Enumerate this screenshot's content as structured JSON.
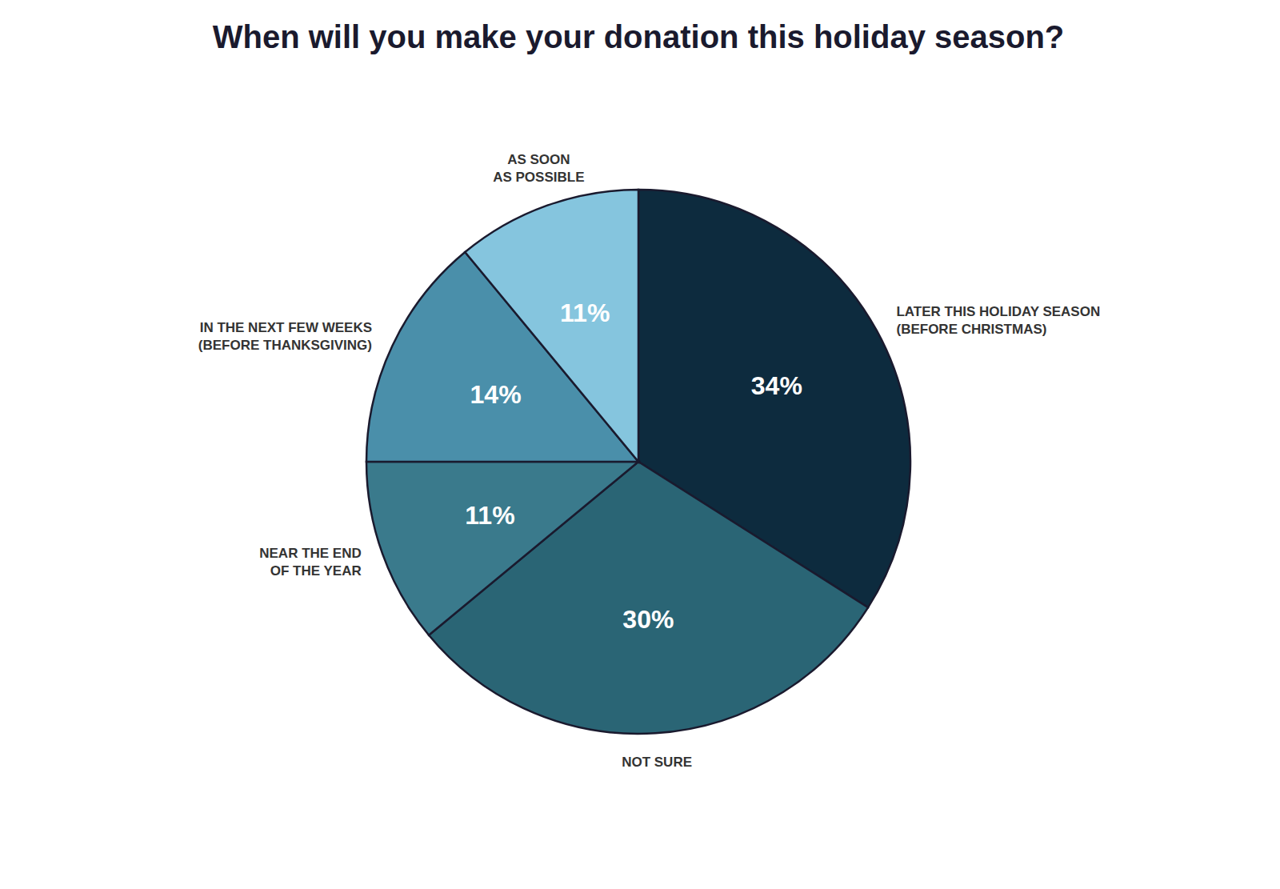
{
  "chart_data": {
    "type": "pie",
    "title": "When will you make your donation this holiday season?",
    "categories": [
      "LATER THIS HOLIDAY SEASON\n(BEFORE CHRISTMAS)",
      "NOT SURE",
      "NEAR THE END\nOF THE YEAR",
      "IN THE NEXT FEW WEEKS\n(BEFORE THANKSGIVING)",
      "AS SOON\nAS POSSIBLE"
    ],
    "values": [
      34,
      30,
      11,
      14,
      11
    ],
    "value_labels": [
      "34%",
      "30%",
      "11%",
      "14%",
      "11%"
    ],
    "colors": [
      "#0d2b3e",
      "#2a6575",
      "#3a7a8c",
      "#4a8faa",
      "#85c5de"
    ],
    "data_labels": true
  }
}
